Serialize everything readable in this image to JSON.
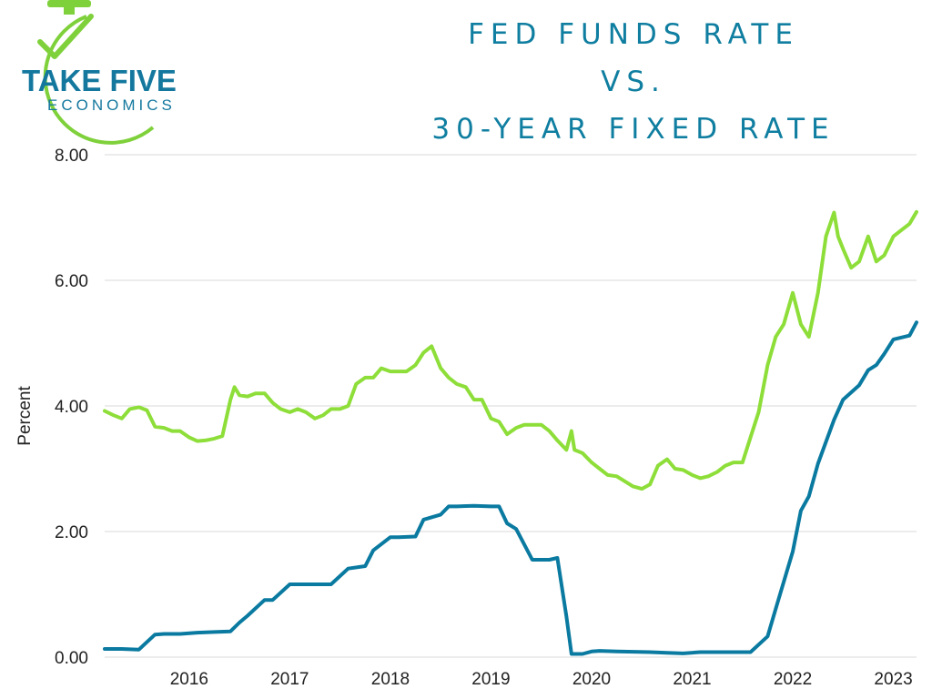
{
  "logo": {
    "line1": "TAKE FIVE",
    "line2": "ECONOMICS"
  },
  "title_lines": [
    "FED FUNDS RATE",
    "VS.",
    "30-YEAR FIXED RATE"
  ],
  "colors": {
    "title": "#0f7ea0",
    "fed_funds": "#0a7aa0",
    "mortgage": "#8ede3a",
    "grid": "#d9d9d9"
  },
  "chart_data": {
    "type": "line",
    "title": "FED FUNDS RATE VS. 30-YEAR FIXED RATE",
    "xlabel": "",
    "ylabel": "Percent",
    "xlim": [
      2015.58,
      2023.65
    ],
    "ylim": [
      0,
      8
    ],
    "yticks": [
      "0.00",
      "2.00",
      "4.00",
      "6.00",
      "8.00"
    ],
    "xticks": [
      "2016",
      "2017",
      "2018",
      "2019",
      "2020",
      "2021",
      "2022",
      "2023"
    ],
    "grid": "horizontal",
    "legend": "none",
    "series": [
      {
        "key": "mortgage",
        "x": [
          2015.58,
          2015.67,
          2015.75,
          2015.83,
          2015.92,
          2016.0,
          2016.08,
          2016.17,
          2016.25,
          2016.33,
          2016.42,
          2016.5,
          2016.58,
          2016.67,
          2016.75,
          2016.83,
          2016.87,
          2016.92,
          2017.0,
          2017.08,
          2017.17,
          2017.25,
          2017.33,
          2017.42,
          2017.5,
          2017.58,
          2017.67,
          2017.75,
          2017.83,
          2017.92,
          2018.0,
          2018.08,
          2018.17,
          2018.25,
          2018.33,
          2018.42,
          2018.5,
          2018.58,
          2018.67,
          2018.75,
          2018.83,
          2018.92,
          2019.0,
          2019.08,
          2019.17,
          2019.25,
          2019.33,
          2019.42,
          2019.5,
          2019.58,
          2019.67,
          2019.75,
          2019.83,
          2019.92,
          2020.0,
          2020.08,
          2020.17,
          2020.22,
          2020.25,
          2020.33,
          2020.42,
          2020.5,
          2020.58,
          2020.67,
          2020.75,
          2020.83,
          2020.92,
          2021.0,
          2021.08,
          2021.17,
          2021.25,
          2021.33,
          2021.42,
          2021.5,
          2021.58,
          2021.67,
          2021.75,
          2021.83,
          2021.92,
          2022.0,
          2022.08,
          2022.17,
          2022.25,
          2022.33,
          2022.42,
          2022.5,
          2022.58,
          2022.67,
          2022.75,
          2022.83,
          2022.87,
          2022.92,
          2023.0,
          2023.08,
          2023.17,
          2023.25,
          2023.33,
          2023.42,
          2023.5,
          2023.58,
          2023.65
        ],
        "values": [
          3.92,
          3.85,
          3.8,
          3.95,
          3.98,
          3.93,
          3.67,
          3.65,
          3.6,
          3.6,
          3.5,
          3.44,
          3.45,
          3.48,
          3.52,
          4.1,
          4.3,
          4.17,
          4.15,
          4.2,
          4.2,
          4.05,
          3.95,
          3.9,
          3.95,
          3.9,
          3.8,
          3.85,
          3.95,
          3.95,
          4.0,
          4.35,
          4.45,
          4.45,
          4.6,
          4.55,
          4.55,
          4.55,
          4.65,
          4.85,
          4.95,
          4.6,
          4.45,
          4.35,
          4.3,
          4.1,
          4.1,
          3.8,
          3.75,
          3.55,
          3.65,
          3.7,
          3.7,
          3.7,
          3.6,
          3.45,
          3.3,
          3.6,
          3.3,
          3.25,
          3.1,
          3.0,
          2.9,
          2.88,
          2.8,
          2.72,
          2.68,
          2.75,
          3.05,
          3.15,
          3.0,
          2.98,
          2.9,
          2.85,
          2.88,
          2.95,
          3.05,
          3.1,
          3.1,
          3.5,
          3.9,
          4.65,
          5.1,
          5.3,
          5.8,
          5.3,
          5.1,
          5.8,
          6.7,
          7.08,
          6.7,
          6.5,
          6.2,
          6.3,
          6.7,
          6.3,
          6.4,
          6.7,
          6.8,
          6.9,
          7.09
        ]
      },
      {
        "key": "fed_funds",
        "x": [
          2015.58,
          2015.75,
          2015.92,
          2016.0,
          2016.08,
          2016.17,
          2016.33,
          2016.5,
          2016.67,
          2016.83,
          2016.92,
          2017.0,
          2017.17,
          2017.25,
          2017.42,
          2017.5,
          2017.67,
          2017.83,
          2018.0,
          2018.17,
          2018.25,
          2018.42,
          2018.5,
          2018.67,
          2018.75,
          2018.92,
          2019.0,
          2019.08,
          2019.25,
          2019.42,
          2019.5,
          2019.58,
          2019.67,
          2019.83,
          2020.0,
          2020.08,
          2020.17,
          2020.22,
          2020.25,
          2020.33,
          2020.42,
          2020.5,
          2020.67,
          2021.0,
          2021.17,
          2021.33,
          2021.5,
          2021.67,
          2021.83,
          2022.0,
          2022.17,
          2022.25,
          2022.42,
          2022.5,
          2022.58,
          2022.67,
          2022.83,
          2022.92,
          2023.08,
          2023.17,
          2023.25,
          2023.33,
          2023.42,
          2023.58,
          2023.65
        ],
        "values": [
          0.13,
          0.13,
          0.12,
          0.24,
          0.36,
          0.37,
          0.37,
          0.39,
          0.4,
          0.41,
          0.55,
          0.66,
          0.91,
          0.91,
          1.16,
          1.16,
          1.16,
          1.16,
          1.41,
          1.45,
          1.7,
          1.91,
          1.91,
          1.92,
          2.19,
          2.27,
          2.4,
          2.4,
          2.41,
          2.4,
          2.4,
          2.13,
          2.04,
          1.55,
          1.55,
          1.58,
          0.65,
          0.05,
          0.05,
          0.05,
          0.09,
          0.1,
          0.09,
          0.08,
          0.07,
          0.06,
          0.08,
          0.08,
          0.08,
          0.08,
          0.33,
          0.77,
          1.68,
          2.33,
          2.56,
          3.08,
          3.78,
          4.1,
          4.33,
          4.57,
          4.65,
          4.83,
          5.06,
          5.12,
          5.33
        ]
      }
    ]
  }
}
